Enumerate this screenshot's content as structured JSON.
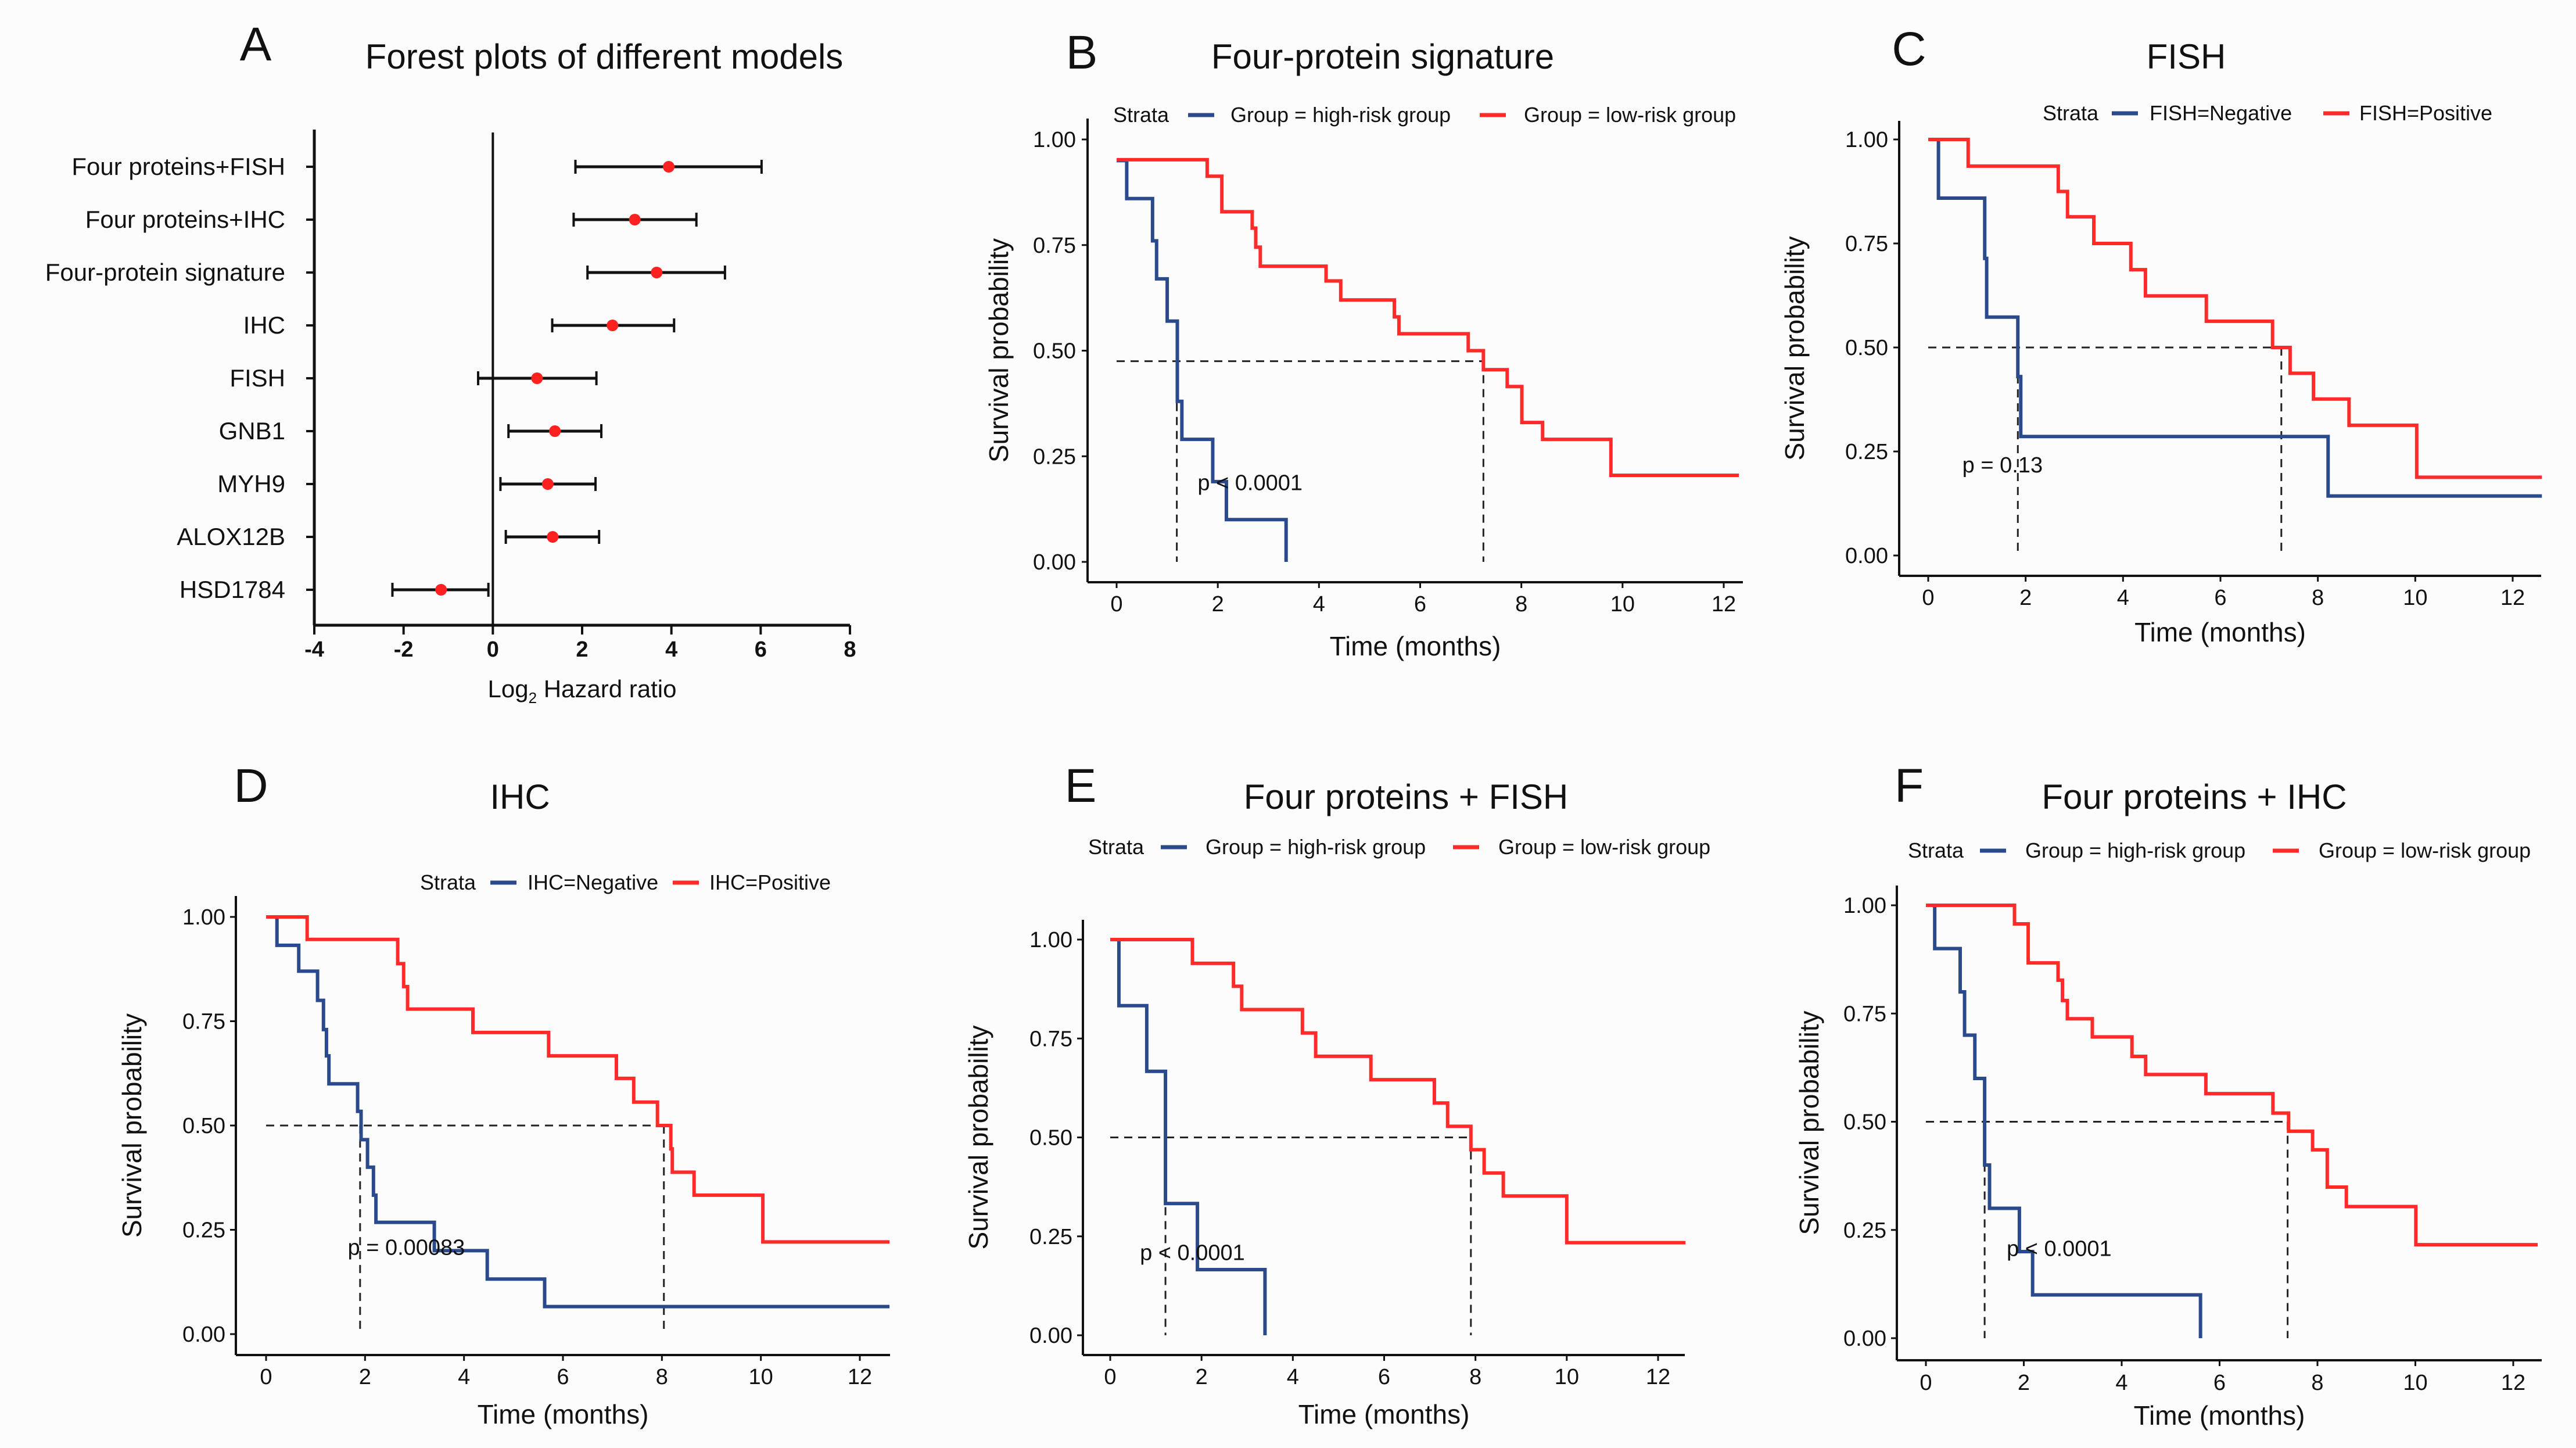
{
  "colors": {
    "high": "#2b4a8c",
    "low": "#ff2a2a",
    "point": "#ff2020",
    "axis": "#111111",
    "median": "#222222"
  },
  "chart_data": [
    {
      "id": "A",
      "type": "forest",
      "letter": "A",
      "title": "Forest plots of different models",
      "xlabel_main": "Log",
      "xlabel_sub": "2",
      "xlabel_rest": " Hazard ratio",
      "xlim": [
        -4,
        8
      ],
      "xticks": [
        -4,
        -2,
        0,
        2,
        4,
        6,
        8
      ],
      "xtick_labels": [
        "-4",
        "-2",
        "0",
        "2",
        "4",
        "6",
        "8"
      ],
      "reference_line": 0,
      "rows": [
        {
          "label": "Four proteins+FISH",
          "value": 3.94,
          "lower": 1.85,
          "upper": 6.02
        },
        {
          "label": "Four proteins+IHC",
          "value": 3.18,
          "lower": 1.81,
          "upper": 4.56
        },
        {
          "label": "Four-protein signature",
          "value": 3.67,
          "lower": 2.12,
          "upper": 5.2
        },
        {
          "label": "IHC",
          "value": 2.68,
          "lower": 1.33,
          "upper": 4.06
        },
        {
          "label": "FISH",
          "value": 0.99,
          "lower": -0.33,
          "upper": 2.32
        },
        {
          "label": "GNB1",
          "value": 1.39,
          "lower": 0.35,
          "upper": 2.43
        },
        {
          "label": "MYH9",
          "value": 1.23,
          "lower": 0.17,
          "upper": 2.3
        },
        {
          "label": "ALOX12B",
          "value": 1.34,
          "lower": 0.29,
          "upper": 2.38
        },
        {
          "label": "HSD1784",
          "value": -1.16,
          "lower": -2.25,
          "upper": -0.1
        }
      ]
    },
    {
      "id": "B",
      "type": "line",
      "subtype": "kaplan-meier",
      "letter": "B",
      "title": "Four-protein signature",
      "xlabel": "Time (months)",
      "ylabel": "Survival probability",
      "xlim": [
        0,
        12.3
      ],
      "ylim": [
        0,
        1
      ],
      "xtick_labels": [
        "0",
        "2",
        "4",
        "6",
        "8",
        "10",
        "12"
      ],
      "xticks": [
        0,
        2,
        4,
        6,
        8,
        10,
        12
      ],
      "ytick_labels": [
        "0.00",
        "0.25",
        "0.50",
        "0.75",
        "1.00"
      ],
      "yticks": [
        0,
        0.25,
        0.5,
        0.75,
        1
      ],
      "legend_title": "Strata",
      "legend_position": "top",
      "series": [
        {
          "name": "Group = high-risk group",
          "color_key": "high",
          "end": 3.35,
          "steps": [
            [
              0,
              0.95
            ],
            [
              0.2,
              0.86
            ],
            [
              0.71,
              0.76
            ],
            [
              0.79,
              0.67
            ],
            [
              1.0,
              0.57
            ],
            [
              1.2,
              0.38
            ],
            [
              1.29,
              0.29
            ],
            [
              1.9,
              0.19
            ],
            [
              2.17,
              0.1
            ],
            [
              3.35,
              0.0
            ]
          ]
        },
        {
          "name": "Group = low-risk group",
          "color_key": "low",
          "end": 12.3,
          "steps": [
            [
              0,
              0.952
            ],
            [
              1.79,
              0.913
            ],
            [
              2.08,
              0.829
            ],
            [
              2.68,
              0.79
            ],
            [
              2.75,
              0.745
            ],
            [
              2.84,
              0.7
            ],
            [
              4.14,
              0.665
            ],
            [
              4.43,
              0.62
            ],
            [
              5.49,
              0.58
            ],
            [
              5.58,
              0.54
            ],
            [
              6.95,
              0.5
            ],
            [
              7.25,
              0.455
            ],
            [
              7.72,
              0.415
            ],
            [
              8.01,
              0.33
            ],
            [
              8.42,
              0.29
            ],
            [
              9.77,
              0.205
            ]
          ]
        }
      ],
      "median": {
        "level": 0.475,
        "times": [
          1.19,
          7.25
        ]
      },
      "p_value": "p < 0.0001",
      "p_pos": [
        1.6,
        0.17
      ]
    },
    {
      "id": "C",
      "type": "line",
      "subtype": "kaplan-meier",
      "letter": "C",
      "title": "FISH",
      "xlabel": "Time (months)",
      "ylabel": "Survival probability",
      "xlim": [
        0,
        12.6
      ],
      "ylim": [
        0,
        1
      ],
      "xtick_labels": [
        "0",
        "2",
        "4",
        "6",
        "8",
        "10",
        "12"
      ],
      "xticks": [
        0,
        2,
        4,
        6,
        8,
        10,
        12
      ],
      "ytick_labels": [
        "0.00",
        "0.25",
        "0.50",
        "0.75",
        "1.00"
      ],
      "yticks": [
        0,
        0.25,
        0.5,
        0.75,
        1
      ],
      "legend_title": "Strata",
      "legend_position": "top",
      "series": [
        {
          "name": "FISH=Negative",
          "color_key": "high",
          "end": 12.6,
          "steps": [
            [
              0,
              1.0
            ],
            [
              0.21,
              0.859
            ],
            [
              1.16,
              0.714
            ],
            [
              1.2,
              0.573
            ],
            [
              1.84,
              0.43
            ],
            [
              1.9,
              0.286
            ],
            [
              8.21,
              0.143
            ]
          ]
        },
        {
          "name": "FISH=Positive",
          "color_key": "low",
          "end": 12.6,
          "steps": [
            [
              0,
              1.0
            ],
            [
              0.82,
              0.936
            ],
            [
              2.67,
              0.875
            ],
            [
              2.86,
              0.814
            ],
            [
              3.4,
              0.75
            ],
            [
              4.16,
              0.687
            ],
            [
              4.46,
              0.624
            ],
            [
              5.71,
              0.563
            ],
            [
              7.07,
              0.5
            ],
            [
              7.43,
              0.438
            ],
            [
              7.91,
              0.376
            ],
            [
              8.64,
              0.313
            ],
            [
              10.03,
              0.188
            ]
          ]
        }
      ],
      "median": {
        "level": 0.5,
        "times": [
          1.84,
          7.25
        ]
      },
      "p_value": "p = 0.13",
      "p_pos": [
        0.7,
        0.2
      ]
    },
    {
      "id": "D",
      "type": "line",
      "subtype": "kaplan-meier",
      "letter": "D",
      "title": "IHC",
      "xlabel": "Time (months)",
      "ylabel": "Survival probability",
      "xlim": [
        0,
        12.6
      ],
      "ylim": [
        0,
        1
      ],
      "xtick_labels": [
        "0",
        "2",
        "4",
        "6",
        "8",
        "10",
        "12"
      ],
      "xticks": [
        0,
        2,
        4,
        6,
        8,
        10,
        12
      ],
      "ytick_labels": [
        "0.00",
        "0.25",
        "0.50",
        "0.75",
        "1.00"
      ],
      "yticks": [
        0,
        0.25,
        0.5,
        0.75,
        1
      ],
      "legend_title": "Strata",
      "legend_position": "top",
      "series": [
        {
          "name": "IHC=Negative",
          "color_key": "high",
          "end": 12.6,
          "steps": [
            [
              0,
              1.0
            ],
            [
              0.22,
              0.932
            ],
            [
              0.66,
              0.87
            ],
            [
              1.04,
              0.8
            ],
            [
              1.16,
              0.73
            ],
            [
              1.22,
              0.667
            ],
            [
              1.27,
              0.6
            ],
            [
              1.85,
              0.534
            ],
            [
              1.92,
              0.466
            ],
            [
              2.05,
              0.4
            ],
            [
              2.17,
              0.333
            ],
            [
              2.22,
              0.268
            ],
            [
              3.4,
              0.2
            ],
            [
              4.47,
              0.132
            ],
            [
              5.63,
              0.066
            ]
          ]
        },
        {
          "name": "IHC=Positive",
          "color_key": "low",
          "end": 12.6,
          "steps": [
            [
              0,
              1.0
            ],
            [
              0.83,
              0.946
            ],
            [
              2.66,
              0.888
            ],
            [
              2.78,
              0.833
            ],
            [
              2.86,
              0.779
            ],
            [
              4.18,
              0.723
            ],
            [
              5.71,
              0.667
            ],
            [
              7.08,
              0.613
            ],
            [
              7.43,
              0.556
            ],
            [
              7.91,
              0.5
            ],
            [
              8.18,
              0.444
            ],
            [
              8.21,
              0.388
            ],
            [
              8.65,
              0.333
            ],
            [
              10.04,
              0.221
            ]
          ]
        }
      ],
      "median": {
        "level": 0.5,
        "times": [
          1.9,
          8.04
        ]
      },
      "p_value": "p = 0.00083",
      "p_pos": [
        1.65,
        0.19
      ]
    },
    {
      "id": "E",
      "type": "line",
      "subtype": "kaplan-meier",
      "letter": "E",
      "title": "Four proteins + FISH",
      "xlabel": "Time (months)",
      "ylabel": "Survival probability",
      "xlim": [
        0,
        12.6
      ],
      "ylim": [
        0,
        1
      ],
      "xtick_labels": [
        "0",
        "2",
        "4",
        "6",
        "8",
        "10",
        "12"
      ],
      "xticks": [
        0,
        2,
        4,
        6,
        8,
        10,
        12
      ],
      "ytick_labels": [
        "0.00",
        "0.25",
        "0.50",
        "0.75",
        "1.00"
      ],
      "yticks": [
        0,
        0.25,
        0.5,
        0.75,
        1
      ],
      "legend_title": "Strata",
      "legend_position": "top",
      "series": [
        {
          "name": "Group = high-risk group",
          "color_key": "high",
          "end": 3.39,
          "steps": [
            [
              0,
              1.0
            ],
            [
              0.19,
              0.833
            ],
            [
              0.8,
              0.667
            ],
            [
              1.21,
              0.333
            ],
            [
              1.91,
              0.166
            ],
            [
              3.39,
              0.0
            ]
          ]
        },
        {
          "name": "Group = low-risk group",
          "color_key": "low",
          "end": 12.6,
          "steps": [
            [
              0,
              1.0
            ],
            [
              1.8,
              0.94
            ],
            [
              2.7,
              0.882
            ],
            [
              2.88,
              0.823
            ],
            [
              4.21,
              0.764
            ],
            [
              4.5,
              0.705
            ],
            [
              5.71,
              0.646
            ],
            [
              7.1,
              0.587
            ],
            [
              7.39,
              0.528
            ],
            [
              7.9,
              0.469
            ],
            [
              8.19,
              0.41
            ],
            [
              8.61,
              0.352
            ],
            [
              10.0,
              0.234
            ]
          ]
        }
      ],
      "median": {
        "level": 0.5,
        "times": [
          1.21,
          7.9
        ]
      },
      "p_value": "p < 0.0001",
      "p_pos": [
        0.65,
        0.19
      ]
    },
    {
      "id": "F",
      "type": "line",
      "subtype": "kaplan-meier",
      "letter": "F",
      "title": "Four proteins + IHC",
      "xlabel": "Time (months)",
      "ylabel": "Survival probability",
      "xlim": [
        0,
        12.5
      ],
      "ylim": [
        0,
        1
      ],
      "xtick_labels": [
        "0",
        "2",
        "4",
        "6",
        "8",
        "10",
        "12"
      ],
      "xticks": [
        0,
        2,
        4,
        6,
        8,
        10,
        12
      ],
      "ytick_labels": [
        "0.00",
        "0.25",
        "0.50",
        "0.75",
        "1.00"
      ],
      "yticks": [
        0,
        0.25,
        0.5,
        0.75,
        1
      ],
      "legend_title": "Strata",
      "legend_position": "top",
      "series": [
        {
          "name": "Group = high-risk group",
          "color_key": "high",
          "end": 5.61,
          "steps": [
            [
              0,
              1.0
            ],
            [
              0.18,
              0.9
            ],
            [
              0.7,
              0.8
            ],
            [
              0.79,
              0.7
            ],
            [
              1.0,
              0.6
            ],
            [
              1.2,
              0.4
            ],
            [
              1.3,
              0.3
            ],
            [
              1.91,
              0.2
            ],
            [
              2.18,
              0.1
            ],
            [
              5.61,
              0.0
            ]
          ]
        },
        {
          "name": "Group = low-risk group",
          "color_key": "low",
          "end": 12.5,
          "steps": [
            [
              0,
              1.0
            ],
            [
              1.81,
              0.957
            ],
            [
              2.09,
              0.867
            ],
            [
              2.7,
              0.827
            ],
            [
              2.79,
              0.78
            ],
            [
              2.89,
              0.738
            ],
            [
              3.4,
              0.696
            ],
            [
              4.21,
              0.651
            ],
            [
              4.49,
              0.609
            ],
            [
              5.72,
              0.565
            ],
            [
              7.09,
              0.52
            ],
            [
              7.41,
              0.478
            ],
            [
              7.9,
              0.435
            ],
            [
              8.2,
              0.349
            ],
            [
              8.59,
              0.304
            ],
            [
              10.01,
              0.216
            ]
          ]
        }
      ],
      "median": {
        "level": 0.5,
        "times": [
          1.2,
          7.39
        ]
      },
      "p_value": "p < 0.0001",
      "p_pos": [
        1.65,
        0.19
      ]
    }
  ]
}
